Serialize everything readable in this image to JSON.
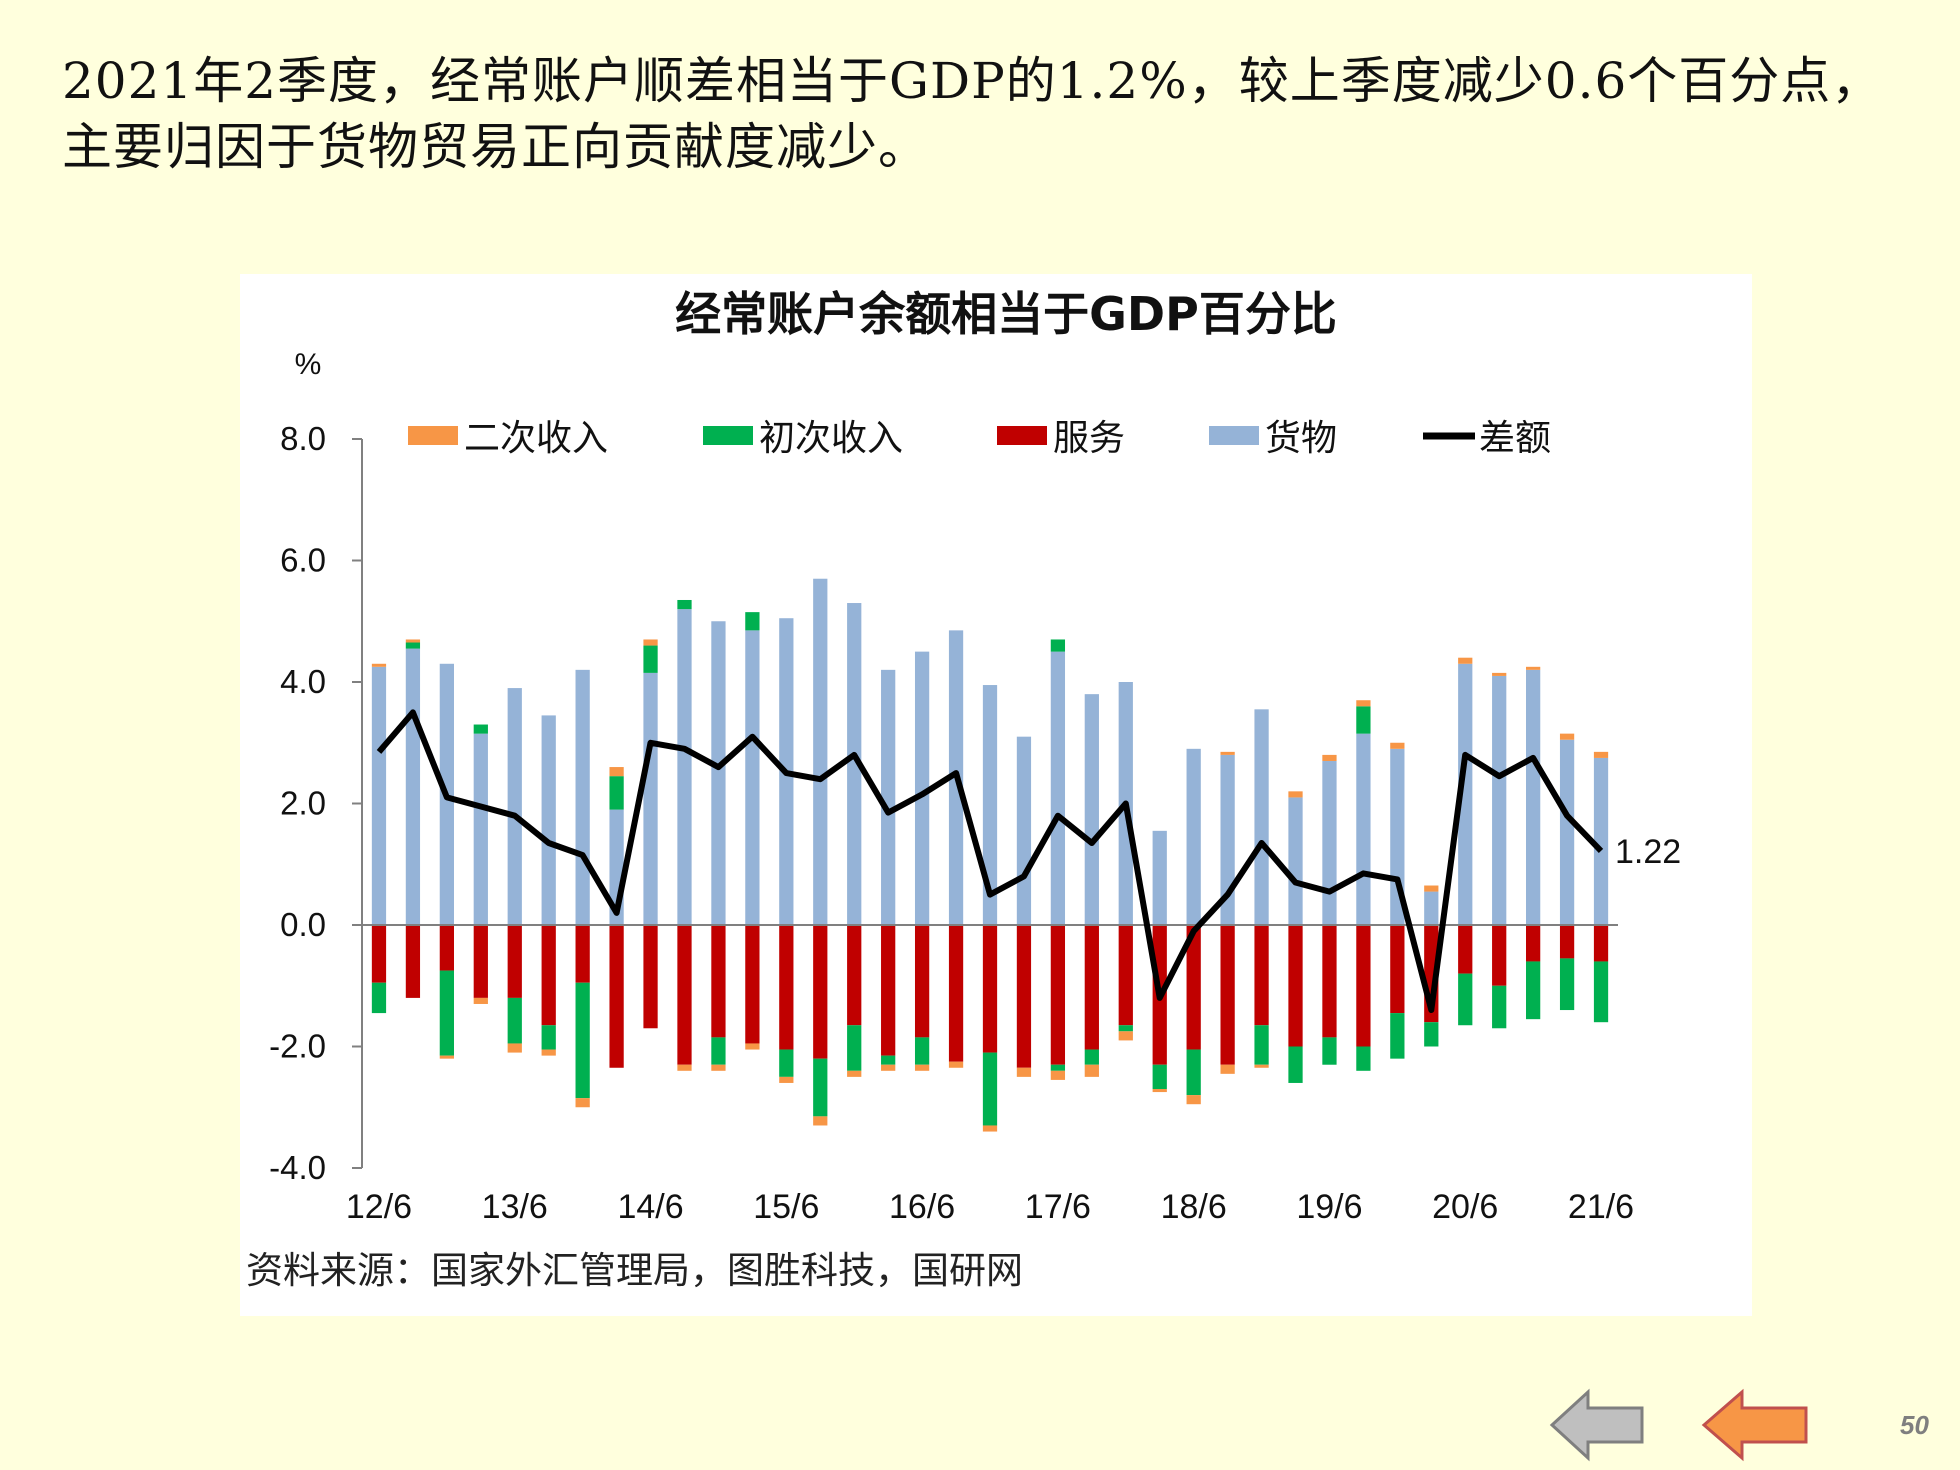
{
  "slide": {
    "headline_line1": "2021年2季度，经常账户顺差相当于GDP的1.2%，较上季度减少0.6个百分点，",
    "headline_line2": "主要归因于货物贸易正向贡献度减少。",
    "source": "资料来源：国家外汇管理局，图胜科技，国研网",
    "page_number": "50",
    "nav": {
      "prev_icon": "arrow-left-gray-icon",
      "next_icon": "arrow-left-orange-icon"
    }
  },
  "chart_data": {
    "type": "bar",
    "stacked": true,
    "title": "经常账户余额相当于GDP百分比",
    "ylabel": "%",
    "ylim": [
      -4.0,
      8.0
    ],
    "yticks": [
      "8.0",
      "6.0",
      "4.0",
      "2.0",
      "0.0",
      "-2.0",
      "-4.0"
    ],
    "xtick_labels": [
      "12/6",
      "13/6",
      "14/6",
      "15/6",
      "16/6",
      "17/6",
      "18/6",
      "19/6",
      "20/6",
      "21/6"
    ],
    "xtick_every": 4,
    "legend_position": "top",
    "categories": [
      "12/6",
      "12/9",
      "12/12",
      "13/3",
      "13/6",
      "13/9",
      "13/12",
      "14/3",
      "14/6",
      "14/9",
      "14/12",
      "15/3",
      "15/6",
      "15/9",
      "15/12",
      "16/3",
      "16/6",
      "16/9",
      "16/12",
      "17/3",
      "17/6",
      "17/9",
      "17/12",
      "18/3",
      "18/6",
      "18/9",
      "18/12",
      "19/3",
      "19/6",
      "19/9",
      "19/12",
      "20/3",
      "20/6",
      "20/9",
      "20/12",
      "21/3",
      "21/6"
    ],
    "series": [
      {
        "name": "二次收入",
        "color": "#F79646",
        "kind": "bar",
        "values": [
          0.05,
          0.05,
          0.0,
          0.0,
          0.0,
          0.0,
          0.0,
          0.15,
          0.1,
          0.0,
          0.0,
          0.0,
          0.0,
          0.0,
          0.0,
          0.0,
          0.0,
          0.0,
          0.0,
          0.0,
          0.0,
          0.0,
          0.0,
          0.0,
          0.0,
          0.05,
          0.0,
          0.1,
          0.1,
          0.1,
          0.1,
          0.1,
          0.1,
          0.05,
          0.05,
          0.1,
          0.1
        ],
        "neg_values": [
          0.0,
          0.0,
          -0.05,
          -0.1,
          -0.15,
          -0.1,
          -0.15,
          0.0,
          0.0,
          -0.1,
          -0.1,
          -0.1,
          -0.1,
          -0.15,
          -0.1,
          -0.1,
          -0.1,
          -0.1,
          -0.1,
          -0.15,
          -0.15,
          -0.2,
          -0.15,
          -0.05,
          -0.15,
          -0.15,
          -0.05,
          0.0,
          0.0,
          0.0,
          0.0,
          0.0,
          0.0,
          0.0,
          0.0,
          0.0,
          0.0
        ]
      },
      {
        "name": "初次收入",
        "color": "#00B050",
        "kind": "bar",
        "values": [
          0.0,
          0.1,
          0.0,
          0.15,
          0.0,
          0.0,
          0.0,
          0.55,
          0.45,
          0.15,
          0.0,
          0.3,
          0.0,
          0.0,
          0.0,
          0.0,
          0.0,
          0.0,
          0.0,
          0.0,
          0.2,
          0.0,
          0.0,
          0.0,
          0.0,
          0.0,
          0.0,
          0.0,
          0.0,
          0.45,
          0.0,
          0.0,
          0.0,
          0.0,
          0.0,
          0.0,
          0.0
        ],
        "neg_values": [
          -0.5,
          0.0,
          -1.4,
          0.0,
          -0.75,
          -0.4,
          -1.9,
          0.0,
          0.0,
          0.0,
          -0.45,
          0.0,
          -0.45,
          -0.95,
          -0.75,
          -0.15,
          -0.45,
          0.0,
          -1.2,
          0.0,
          -0.1,
          -0.25,
          -0.1,
          -0.4,
          -0.75,
          0.0,
          -0.65,
          -0.6,
          -0.45,
          -0.4,
          -0.75,
          -0.4,
          -0.85,
          -0.7,
          -0.95,
          -0.85,
          -1.0
        ]
      },
      {
        "name": "服务",
        "color": "#C00000",
        "kind": "bar",
        "values": [
          0.0,
          0.0,
          0.0,
          0.0,
          0.0,
          0.0,
          0.0,
          0.0,
          0.0,
          0.0,
          0.0,
          0.0,
          0.0,
          0.0,
          0.0,
          0.0,
          0.0,
          0.0,
          0.0,
          0.0,
          0.0,
          0.0,
          0.0,
          0.0,
          0.0,
          0.0,
          0.0,
          0.0,
          0.0,
          0.0,
          0.0,
          0.0,
          0.0,
          0.0,
          0.0,
          0.0,
          0.0
        ],
        "neg_values": [
          -0.95,
          -1.2,
          -0.75,
          -1.2,
          -1.2,
          -1.65,
          -0.95,
          -2.35,
          -1.7,
          -2.3,
          -1.85,
          -1.95,
          -2.05,
          -2.2,
          -1.65,
          -2.15,
          -1.85,
          -2.25,
          -2.1,
          -2.35,
          -2.3,
          -2.05,
          -1.65,
          -2.3,
          -2.05,
          -2.3,
          -1.65,
          -2.0,
          -1.85,
          -2.0,
          -1.45,
          -1.6,
          -0.8,
          -1.0,
          -0.6,
          -0.55,
          -0.6
        ]
      },
      {
        "name": "货物",
        "color": "#95B3D7",
        "kind": "bar",
        "values": [
          4.25,
          4.55,
          4.3,
          3.15,
          3.9,
          3.45,
          4.2,
          1.9,
          4.15,
          5.2,
          5.0,
          4.85,
          5.05,
          5.7,
          5.3,
          4.2,
          4.5,
          4.85,
          3.95,
          3.1,
          4.5,
          3.8,
          4.0,
          1.55,
          2.9,
          2.8,
          3.55,
          2.1,
          2.7,
          3.15,
          2.9,
          0.55,
          4.3,
          4.1,
          4.2,
          3.05,
          2.75
        ],
        "neg_values": [
          0,
          0,
          0,
          0,
          0,
          0,
          0,
          0,
          0,
          0,
          0,
          0,
          0,
          0,
          0,
          0,
          0,
          0,
          0,
          0,
          0,
          0,
          0,
          0,
          0,
          0,
          0,
          0,
          0,
          0,
          0,
          0,
          0,
          0,
          0,
          0,
          0
        ]
      },
      {
        "name": "差额",
        "color": "#000000",
        "kind": "line",
        "values": [
          2.85,
          3.5,
          2.1,
          1.95,
          1.8,
          1.35,
          1.15,
          0.2,
          3.0,
          2.9,
          2.6,
          3.1,
          2.5,
          2.4,
          2.8,
          1.85,
          2.15,
          2.5,
          0.5,
          0.8,
          1.8,
          1.35,
          2.0,
          -1.2,
          -0.1,
          0.5,
          1.35,
          0.7,
          0.55,
          0.85,
          0.75,
          -1.4,
          2.8,
          2.45,
          2.75,
          1.8,
          1.22
        ]
      }
    ],
    "annotation": {
      "text": "1.22",
      "point": "21/6"
    }
  }
}
